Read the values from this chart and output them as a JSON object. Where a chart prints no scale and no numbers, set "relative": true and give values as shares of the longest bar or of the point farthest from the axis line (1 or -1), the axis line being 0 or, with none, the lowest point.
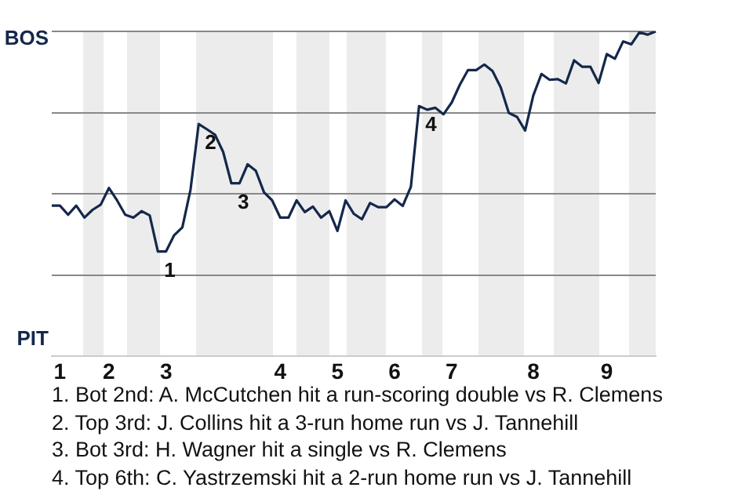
{
  "chart_data": {
    "type": "line",
    "relative": true,
    "categories": [
      null,
      "1",
      null,
      null,
      null,
      null,
      null,
      "2",
      null,
      null,
      null,
      null,
      null,
      null,
      "3",
      null,
      null,
      null,
      null,
      null,
      null,
      null,
      null,
      null,
      null,
      null,
      null,
      null,
      "4",
      null,
      null,
      null,
      null,
      null,
      null,
      "5",
      null,
      null,
      null,
      null,
      null,
      null,
      "6",
      null,
      null,
      null,
      null,
      null,
      null,
      "7",
      null,
      null,
      null,
      null,
      null,
      null,
      null,
      null,
      null,
      "8",
      null,
      null,
      null,
      null,
      null,
      null,
      null,
      null,
      "9",
      null,
      null,
      null,
      null,
      null,
      null
    ],
    "series": [
      {
        "color": "#14284b",
        "values": [
          0.464,
          0.464,
          0.436,
          0.464,
          0.427,
          0.451,
          0.467,
          0.518,
          0.48,
          0.436,
          0.427,
          0.447,
          0.434,
          0.323,
          0.323,
          0.373,
          0.397,
          0.513,
          0.715,
          0.699,
          0.682,
          0.629,
          0.533,
          0.533,
          0.591,
          0.571,
          0.505,
          0.48,
          0.427,
          0.427,
          0.48,
          0.444,
          0.461,
          0.427,
          0.447,
          0.386,
          0.48,
          0.439,
          0.422,
          0.472,
          0.459,
          0.459,
          0.483,
          0.463,
          0.522,
          0.77,
          0.759,
          0.765,
          0.745,
          0.781,
          0.836,
          0.881,
          0.881,
          0.898,
          0.878,
          0.828,
          0.749,
          0.737,
          0.695,
          0.803,
          0.869,
          0.851,
          0.853,
          0.84,
          0.911,
          0.891,
          0.891,
          0.841,
          0.93,
          0.916,
          0.969,
          0.96,
          0.997,
          0.99,
          1
        ]
      }
    ],
    "grid": "y",
    "legend": false,
    "marker": "none",
    "line_style": "solid",
    "annotations": [
      "BOS",
      "PIT",
      {
        "text": "1",
        "y": 0.323
      },
      {
        "text": "2",
        "y": 0.715
      },
      {
        "text": "3",
        "y": 0.533
      },
      {
        "text": "4",
        "y": 0.77
      },
      "1. Bot 2nd: A. McCutchen hit a run-scoring double vs R. Clemens",
      "2. Top 3rd: J. Collins hit a 3-run home run vs J. Tannehill",
      "3. Bot 3rd: H. Wagner hit a single vs R. Clemens",
      "4. Top 6th: C. Yastrzemski hit a 2-run home run vs J. Tannehill"
    ]
  }
}
